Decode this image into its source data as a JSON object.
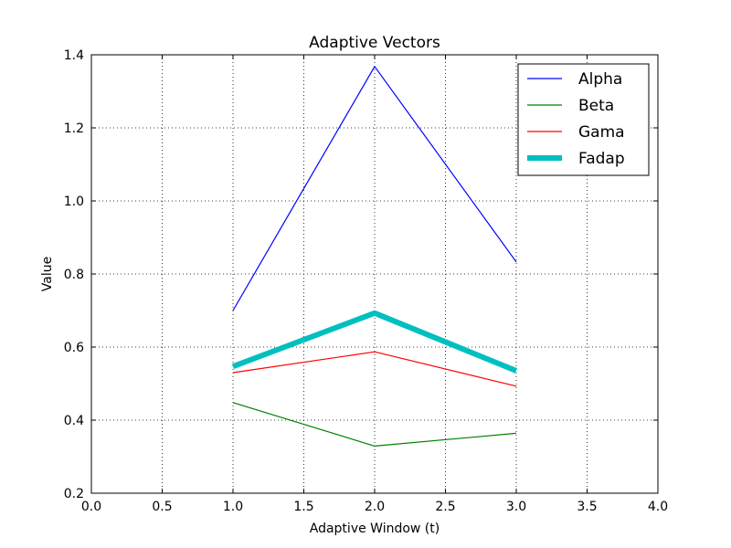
{
  "chart_data": {
    "type": "line",
    "title": "Adaptive Vectors",
    "xlabel": "Adaptive Window (t)",
    "ylabel": "Value",
    "xlim": [
      0.0,
      4.0
    ],
    "ylim": [
      0.2,
      1.4
    ],
    "x_ticks": [
      "0.0",
      "0.5",
      "1.0",
      "1.5",
      "2.0",
      "2.5",
      "3.0",
      "3.5",
      "4.0"
    ],
    "y_ticks": [
      "0.2",
      "0.4",
      "0.6",
      "0.8",
      "1.0",
      "1.2",
      "1.4"
    ],
    "grid": true,
    "legend_position": "top-right",
    "x": [
      1.0,
      2.0,
      3.0
    ],
    "series": [
      {
        "name": "Alpha",
        "values": [
          0.7,
          1.368,
          0.833
        ],
        "color": "#0000ff",
        "width": 1.2
      },
      {
        "name": "Beta",
        "values": [
          0.448,
          0.329,
          0.364
        ],
        "color": "#008000",
        "width": 1.2
      },
      {
        "name": "Gama",
        "values": [
          0.53,
          0.587,
          0.493
        ],
        "color": "#ff0000",
        "width": 1.2
      },
      {
        "name": "Fadap",
        "values": [
          0.547,
          0.693,
          0.535
        ],
        "color": "#00bfbf",
        "width": 6
      }
    ]
  }
}
